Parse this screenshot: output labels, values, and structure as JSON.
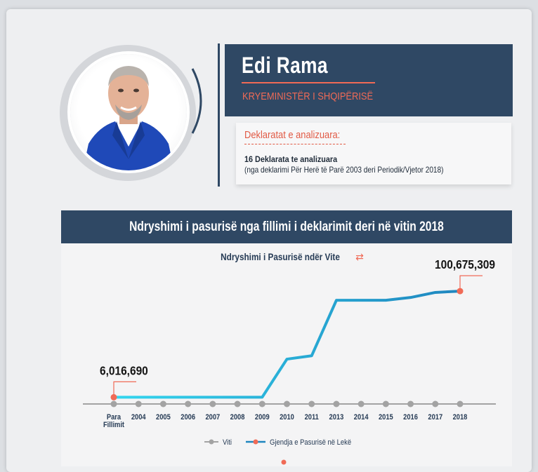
{
  "profile": {
    "name": "Edi Rama",
    "title": "KRYEMINISTËR I SHQIPËRISË"
  },
  "declarations": {
    "heading": "Deklaratat e analizuara:",
    "count": "16 Deklarata te analizuara",
    "range": "(nga deklarimi Për Herë të Parë 2003 deri Periodik/Vjetor 2018)"
  },
  "chart_section": {
    "header": "Ndryshimi i pasurisë nga fillimi i deklarimit deri në vitin 2018",
    "subtitle": "Ndryshimi i Pasurisë ndër Vite",
    "refresh_icon": "refresh-icon"
  },
  "colors": {
    "navy": "#2f4864",
    "accent": "#f06a56",
    "line_start": "#33d6ee",
    "line_end": "#1f86bf",
    "axis_gray": "#a3a3a3"
  },
  "chart_data": {
    "type": "line",
    "title": "Ndryshimi i Pasurisë ndër Vite",
    "categories": [
      "Para Fillimit",
      "2004",
      "2005",
      "2006",
      "2007",
      "2008",
      "2009",
      "2010",
      "2011",
      "2013",
      "2014",
      "2015",
      "2016",
      "2017",
      "2018"
    ],
    "category_lines": [
      [
        "Para",
        "Fillimit"
      ],
      [
        "2004"
      ],
      [
        "2005"
      ],
      [
        "2006"
      ],
      [
        "2007"
      ],
      [
        "2008"
      ],
      [
        "2009"
      ],
      [
        "2010"
      ],
      [
        "2011"
      ],
      [
        "2013"
      ],
      [
        "2014"
      ],
      [
        "2015"
      ],
      [
        "2016"
      ],
      [
        "2017"
      ],
      [
        "2018"
      ]
    ],
    "series": [
      {
        "name": "Viti",
        "values": [
          0,
          0,
          0,
          0,
          0,
          0,
          0,
          0,
          0,
          0,
          0,
          0,
          0,
          0,
          0
        ]
      },
      {
        "name": "Gjendja e Pasurisë në Lekë",
        "values": [
          6016690,
          6016690,
          6016690,
          6016690,
          6016690,
          6016690,
          6016690,
          40000000,
          43000000,
          92500000,
          92500000,
          92500000,
          95000000,
          99500000,
          100675309
        ]
      }
    ],
    "data_labels": [
      {
        "index": 0,
        "text": "6,016,690"
      },
      {
        "index": 14,
        "text": "100,675,309"
      }
    ],
    "ylim": [
      0,
      112000000
    ],
    "grid": false,
    "legend_position": "bottom"
  }
}
